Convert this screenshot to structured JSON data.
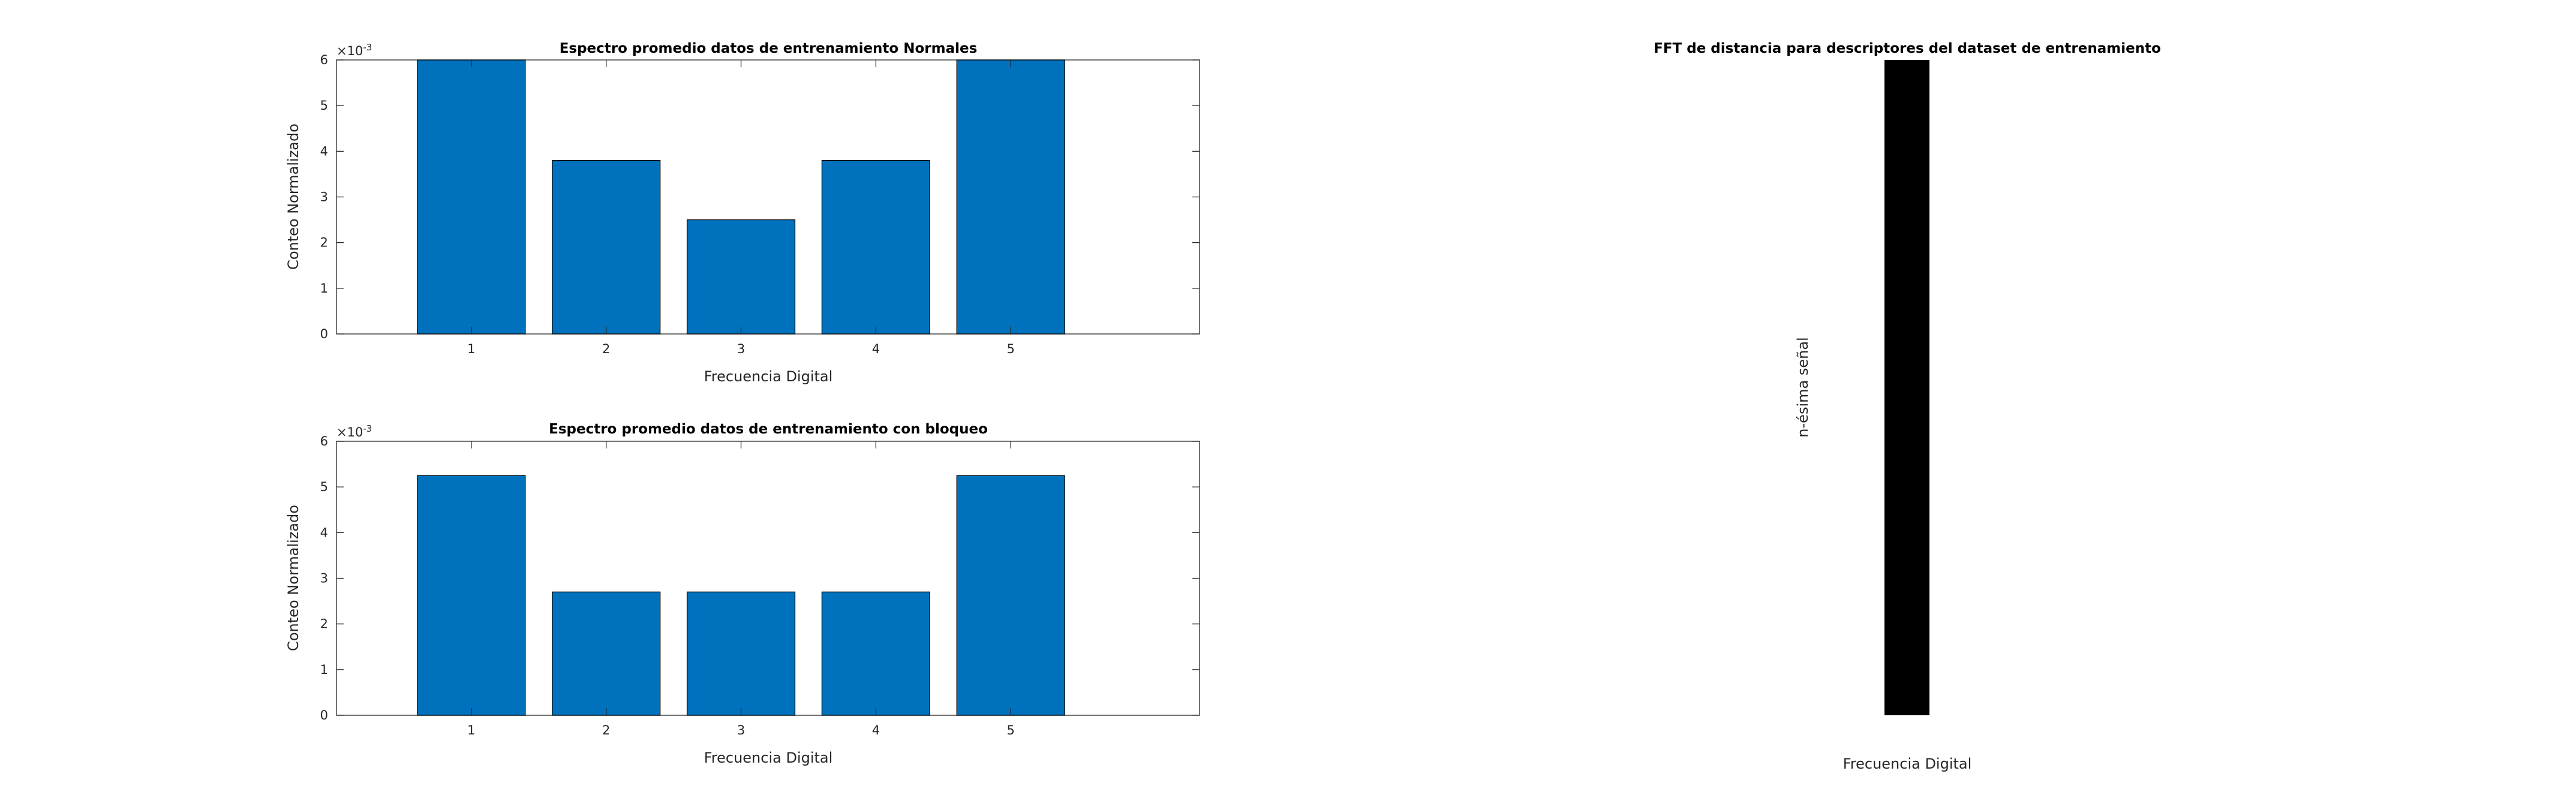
{
  "chart_data": [
    {
      "type": "bar",
      "title": "Espectro promedio datos de entrenamiento Normales",
      "xlabel": "Frecuencia Digital",
      "ylabel": "Conteo Normalizado",
      "categories": [
        "1",
        "2",
        "3",
        "4",
        "5"
      ],
      "values": [
        0.0061,
        0.0038,
        0.0025,
        0.0038,
        0.0061
      ],
      "ylim": [
        0,
        0.006
      ],
      "xlim": [
        0,
        6.4
      ],
      "yticks": [
        "0",
        "1",
        "2",
        "3",
        "4",
        "5",
        "6"
      ],
      "exponent_label": "×10",
      "exponent_power": "-3",
      "bar_color": "#0072BD",
      "grid": false
    },
    {
      "type": "bar",
      "title": "Espectro promedio datos de entrenamiento con bloqueo",
      "xlabel": "Frecuencia Digital",
      "ylabel": "Conteo Normalizado",
      "categories": [
        "1",
        "2",
        "3",
        "4",
        "5"
      ],
      "values": [
        0.00525,
        0.0027,
        0.0027,
        0.0027,
        0.00525
      ],
      "ylim": [
        0,
        0.006
      ],
      "xlim": [
        0,
        6.4
      ],
      "yticks": [
        "0",
        "1",
        "2",
        "3",
        "4",
        "5",
        "6"
      ],
      "exponent_label": "×10",
      "exponent_power": "-3",
      "bar_color": "#0072BD",
      "grid": false
    },
    {
      "type": "heatmap",
      "title": "FFT de distancia para descriptores del dataset de entrenamiento",
      "xlabel": "Frecuencia Digital",
      "ylabel": "n-ésima señal",
      "fill_color": "#000000"
    }
  ]
}
